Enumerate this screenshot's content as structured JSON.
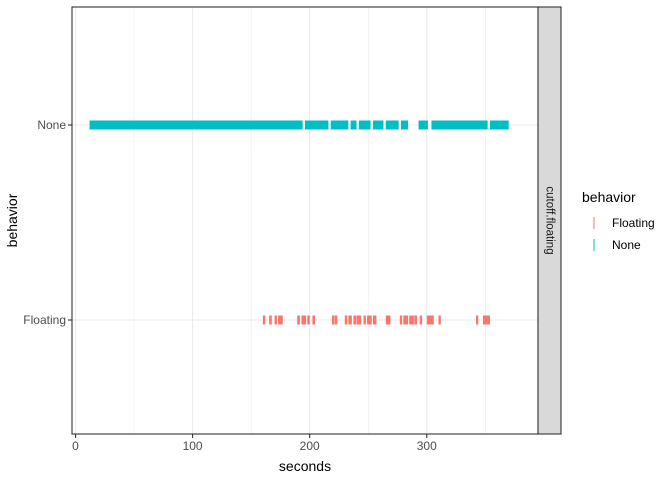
{
  "chart_data": {
    "type": "scatter",
    "title": "",
    "xlabel": "seconds",
    "ylabel": "behavior",
    "xlim": [
      -3,
      395
    ],
    "x_ticks": [
      0,
      100,
      200,
      300
    ],
    "categories": [
      "Floating",
      "None"
    ],
    "facet_label": "cutoff.floating",
    "grid": true,
    "legend": {
      "title": "behavior",
      "position": "right",
      "entries": [
        {
          "name": "Floating",
          "color": "#F8766D"
        },
        {
          "name": "None",
          "color": "#00BFC4"
        }
      ]
    },
    "series": [
      {
        "name": "None",
        "color": "#00BFC4",
        "segments": [
          [
            12,
            194
          ],
          [
            196,
            216
          ],
          [
            218,
            233
          ],
          [
            235,
            240
          ],
          [
            242,
            252
          ],
          [
            254,
            263
          ],
          [
            265,
            276
          ],
          [
            278,
            284
          ],
          [
            293,
            301
          ],
          [
            304,
            352
          ],
          [
            354,
            370
          ]
        ]
      },
      {
        "name": "Floating",
        "color": "#F8766D",
        "segments": [
          [
            160,
            162
          ],
          [
            166,
            167
          ],
          [
            170,
            172
          ],
          [
            173,
            177
          ],
          [
            190,
            191
          ],
          [
            193,
            197
          ],
          [
            198,
            200
          ],
          [
            203,
            204
          ],
          [
            219,
            221
          ],
          [
            222,
            223
          ],
          [
            230,
            232
          ],
          [
            233,
            236
          ],
          [
            238,
            239
          ],
          [
            240,
            244
          ],
          [
            246,
            248
          ],
          [
            249,
            253
          ],
          [
            254,
            257
          ],
          [
            265,
            269
          ],
          [
            277,
            279
          ],
          [
            280,
            284
          ],
          [
            285,
            289
          ],
          [
            290,
            291
          ],
          [
            294,
            296
          ],
          [
            300,
            306
          ],
          [
            310,
            312
          ],
          [
            342,
            344
          ],
          [
            348,
            354
          ]
        ]
      }
    ]
  }
}
